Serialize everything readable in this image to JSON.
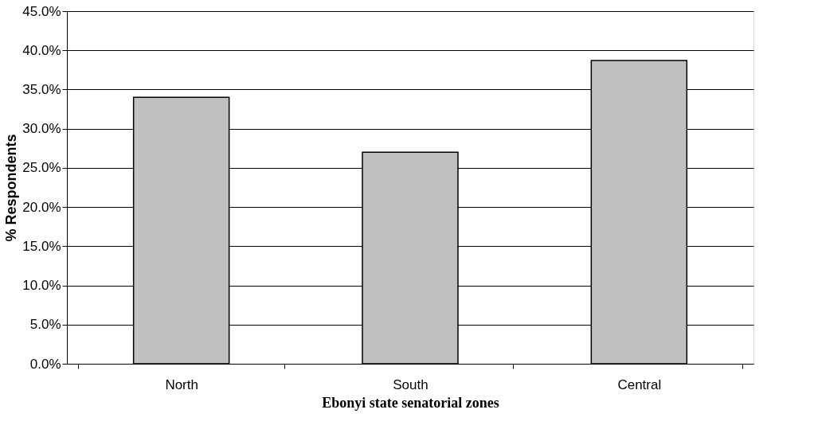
{
  "chart_data": {
    "type": "bar",
    "xlabel": "Ebonyi state senatorial zones",
    "ylabel": "% Respondents",
    "categories": [
      "North",
      "South",
      "Central"
    ],
    "values": [
      34.0,
      27.0,
      38.7
    ],
    "color": "#c0c0c0",
    "ylim": [
      0,
      45
    ],
    "yticks": [
      {
        "value": 0,
        "label": "0.0%"
      },
      {
        "value": 5,
        "label": "5.0%"
      },
      {
        "value": 10,
        "label": "10.0%"
      },
      {
        "value": 15,
        "label": "15.0%"
      },
      {
        "value": 20,
        "label": "20.0%"
      },
      {
        "value": 25,
        "label": "25.0%"
      },
      {
        "value": 30,
        "label": "30.0%"
      },
      {
        "value": 35,
        "label": "35.0%"
      },
      {
        "value": 40,
        "label": "40.0%"
      },
      {
        "value": 45,
        "label": "45.0%"
      }
    ],
    "grid": "y"
  }
}
